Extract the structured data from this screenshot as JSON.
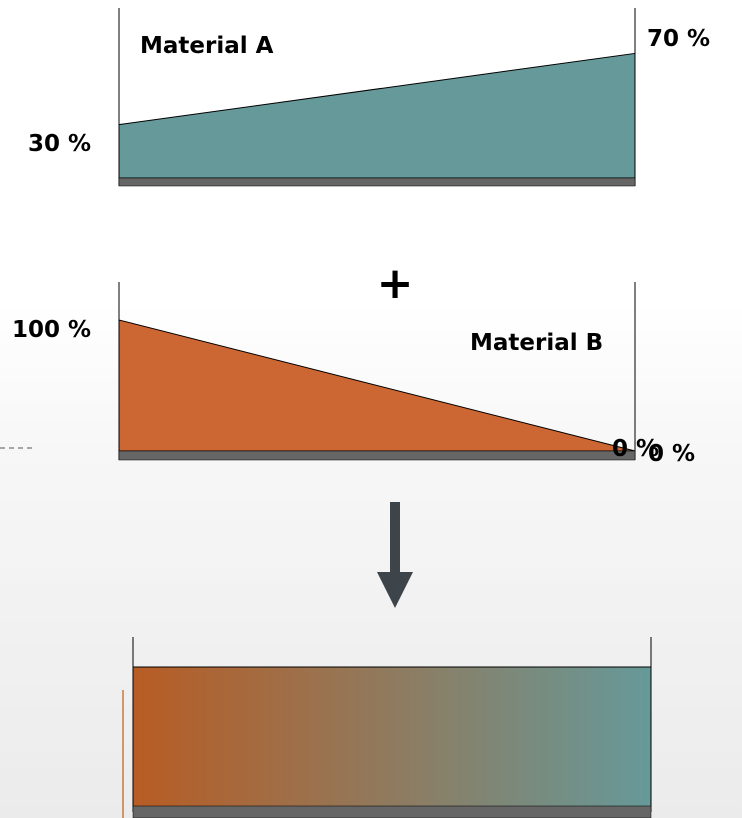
{
  "panel_a": {
    "name": "Material A",
    "start_label": "30 %",
    "end_label": "70 %",
    "start_value": 30,
    "end_value": 70,
    "fill_color": "#669999"
  },
  "operator": "+",
  "panel_b": {
    "name": "Material B",
    "start_label": "100 %",
    "end_label": "0 %",
    "end_label_dup": "0 %",
    "start_value": 100,
    "end_value": 0,
    "fill_color": "#cc6633"
  },
  "arrow_color": "#3d454b",
  "result": {
    "gradient_start_color": "#b85c24",
    "gradient_end_color": "#669999"
  },
  "colors": {
    "base_bar": "#666666",
    "axis_line": "#000000"
  }
}
